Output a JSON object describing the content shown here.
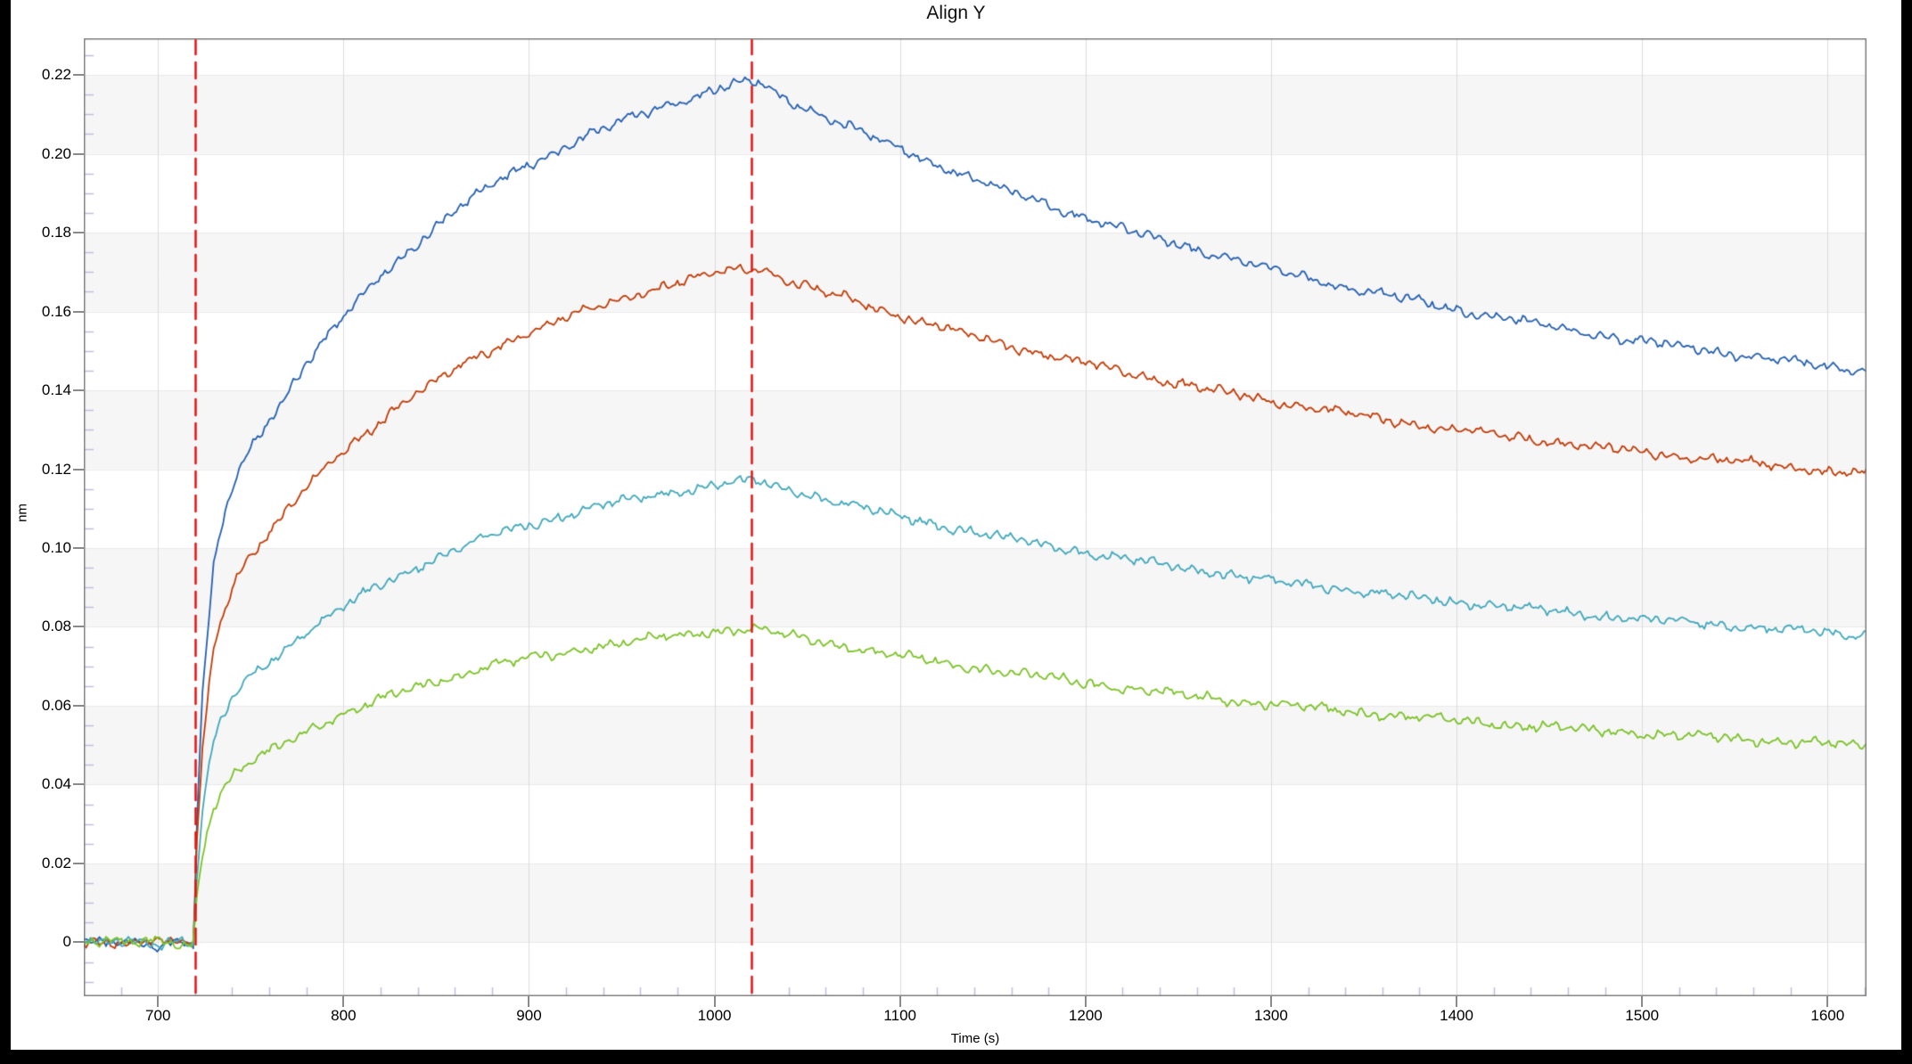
{
  "frame": {
    "background": "#000000",
    "panel_background": "#ffffff",
    "plot_border_color": "#828282",
    "major_tick_color": "#8a8a8a",
    "minor_tick_color": "#c2bede"
  },
  "grid": {
    "v_line_color": "#dcdcdc",
    "h_line_color": "#e9e9e9",
    "band_color": "#f6f6f7",
    "band_intervals": [
      [
        0,
        0.02
      ],
      [
        0.04,
        0.06
      ],
      [
        0.08,
        0.1
      ],
      [
        0.12,
        0.14
      ],
      [
        0.16,
        0.18
      ],
      [
        0.2,
        0.22
      ]
    ]
  },
  "chart_data": {
    "type": "line",
    "title": "Align Y",
    "xlabel": "Time (s)",
    "ylabel": "nm",
    "xlim": [
      660,
      1621
    ],
    "ylim": [
      -0.0137,
      0.2293
    ],
    "grid": "on",
    "legend": "none",
    "x_major_ticks": [
      {
        "v": 700,
        "label": "700"
      },
      {
        "v": 800,
        "label": "800"
      },
      {
        "v": 900,
        "label": "900"
      },
      {
        "v": 1000,
        "label": "1000"
      },
      {
        "v": 1100,
        "label": "1100"
      },
      {
        "v": 1200,
        "label": "1200"
      },
      {
        "v": 1300,
        "label": "1300"
      },
      {
        "v": 1400,
        "label": "1400"
      },
      {
        "v": 1500,
        "label": "1500"
      },
      {
        "v": 1600,
        "label": "1600"
      }
    ],
    "x_minor_step": 20,
    "y_major_ticks": [
      {
        "v": 0,
        "label": "0"
      },
      {
        "v": 0.02,
        "label": "0.02"
      },
      {
        "v": 0.04,
        "label": "0.04"
      },
      {
        "v": 0.06,
        "label": "0.06"
      },
      {
        "v": 0.08,
        "label": "0.08"
      },
      {
        "v": 0.1,
        "label": "0.10"
      },
      {
        "v": 0.12,
        "label": "0.12"
      },
      {
        "v": 0.14,
        "label": "0.14"
      },
      {
        "v": 0.16,
        "label": "0.16"
      },
      {
        "v": 0.18,
        "label": "0.18"
      },
      {
        "v": 0.2,
        "label": "0.20"
      },
      {
        "v": 0.22,
        "label": "0.22"
      }
    ],
    "y_minor_step": 0.005,
    "annotations": {
      "vlines": [
        {
          "x": 720,
          "color": "#e61412",
          "style": "dashed",
          "meaning": "step-marker"
        },
        {
          "x": 1020,
          "color": "#e61412",
          "style": "dashed",
          "meaning": "step-marker"
        }
      ]
    },
    "noise": {
      "hf": 0.00055,
      "w1": 0.0006,
      "w2": 0.0005,
      "w3": 0.0004
    },
    "series": [
      {
        "name": "series-1-blue",
        "color": "#2660ae",
        "baseline": 0.0,
        "peak": 0.218,
        "peak_t": 1020,
        "end": 0.145,
        "points": [
          [
            660,
            0.0005
          ],
          [
            672,
            -0.0006
          ],
          [
            684,
            0.0004
          ],
          [
            696,
            -0.0007
          ],
          [
            708,
            0.0003
          ],
          [
            718,
            -0.0004
          ],
          [
            719,
            -0.0005
          ],
          [
            721,
            0.0315
          ],
          [
            724,
            0.0628
          ],
          [
            730,
            0.0947
          ],
          [
            740,
            0.1149
          ],
          [
            750,
            0.125
          ],
          [
            760,
            0.133
          ],
          [
            780,
            0.1469
          ],
          [
            800,
            0.1587
          ],
          [
            820,
            0.169
          ],
          [
            850,
            0.1817
          ],
          [
            880,
            0.1918
          ],
          [
            900,
            0.1975
          ],
          [
            940,
            0.2064
          ],
          [
            980,
            0.2131
          ],
          [
            1020,
            0.218
          ],
          [
            1040,
            0.2134
          ],
          [
            1060,
            0.2091
          ],
          [
            1100,
            0.201
          ],
          [
            1150,
            0.192
          ],
          [
            1200,
            0.184
          ],
          [
            1250,
            0.177
          ],
          [
            1300,
            0.1708
          ],
          [
            1350,
            0.1653
          ],
          [
            1400,
            0.1605
          ],
          [
            1450,
            0.1563
          ],
          [
            1500,
            0.1525
          ],
          [
            1560,
            0.1486
          ],
          [
            1621,
            0.145
          ]
        ]
      },
      {
        "name": "series-2-red-orange",
        "color": "#c03d08",
        "baseline": 0.0,
        "peak": 0.171,
        "peak_t": 1020,
        "end": 0.119,
        "points": [
          [
            660,
            -0.0004
          ],
          [
            672,
            0.0006
          ],
          [
            684,
            -0.0005
          ],
          [
            696,
            0.0005
          ],
          [
            708,
            -0.0006
          ],
          [
            718,
            0.0004
          ],
          [
            719,
            -0.0003
          ],
          [
            721,
            0.0247
          ],
          [
            724,
            0.0493
          ],
          [
            730,
            0.0743
          ],
          [
            740,
            0.0901
          ],
          [
            750,
            0.0981
          ],
          [
            760,
            0.1044
          ],
          [
            780,
            0.1152
          ],
          [
            800,
            0.1245
          ],
          [
            820,
            0.1326
          ],
          [
            850,
            0.1425
          ],
          [
            880,
            0.1505
          ],
          [
            900,
            0.1549
          ],
          [
            940,
            0.1619
          ],
          [
            980,
            0.1671
          ],
          [
            1020,
            0.171
          ],
          [
            1040,
            0.1677
          ],
          [
            1060,
            0.1646
          ],
          [
            1100,
            0.1589
          ],
          [
            1150,
            0.1524
          ],
          [
            1200,
            0.1468
          ],
          [
            1250,
            0.1418
          ],
          [
            1300,
            0.1373
          ],
          [
            1350,
            0.1334
          ],
          [
            1400,
            0.13
          ],
          [
            1450,
            0.127
          ],
          [
            1500,
            0.1243
          ],
          [
            1560,
            0.1215
          ],
          [
            1621,
            0.1188
          ]
        ]
      },
      {
        "name": "series-3-cyan",
        "color": "#41a8ba",
        "baseline": 0.0,
        "peak": 0.117,
        "peak_t": 1020,
        "end": 0.078,
        "points": [
          [
            660,
            0.0003
          ],
          [
            672,
            -0.0005
          ],
          [
            684,
            0.0006
          ],
          [
            696,
            -0.0004
          ],
          [
            708,
            0.0005
          ],
          [
            718,
            -0.0002
          ],
          [
            719,
            -0.0006
          ],
          [
            721,
            0.0169
          ],
          [
            724,
            0.0337
          ],
          [
            730,
            0.0508
          ],
          [
            740,
            0.0616
          ],
          [
            750,
            0.0671
          ],
          [
            760,
            0.0714
          ],
          [
            780,
            0.0788
          ],
          [
            800,
            0.0852
          ],
          [
            820,
            0.0907
          ],
          [
            850,
            0.0975
          ],
          [
            880,
            0.103
          ],
          [
            900,
            0.106
          ],
          [
            940,
            0.1108
          ],
          [
            980,
            0.1144
          ],
          [
            1020,
            0.117
          ],
          [
            1040,
            0.1146
          ],
          [
            1060,
            0.1122
          ],
          [
            1100,
            0.1079
          ],
          [
            1150,
            0.1031
          ],
          [
            1200,
            0.0989
          ],
          [
            1250,
            0.0951
          ],
          [
            1300,
            0.0918
          ],
          [
            1350,
            0.0889
          ],
          [
            1400,
            0.0863
          ],
          [
            1450,
            0.084
          ],
          [
            1500,
            0.082
          ],
          [
            1560,
            0.0799
          ],
          [
            1621,
            0.078
          ]
        ]
      },
      {
        "name": "series-4-green",
        "color": "#7cc228",
        "baseline": 0.0,
        "peak": 0.0795,
        "peak_t": 1020,
        "end": 0.05,
        "points": [
          [
            660,
            -0.0003
          ],
          [
            672,
            0.0005
          ],
          [
            684,
            -0.0006
          ],
          [
            696,
            0.0004
          ],
          [
            708,
            -0.0004
          ],
          [
            718,
            -0.0003
          ],
          [
            719,
            0.0002
          ],
          [
            721,
            0.0115
          ],
          [
            724,
            0.0229
          ],
          [
            730,
            0.0345
          ],
          [
            740,
            0.0419
          ],
          [
            750,
            0.0456
          ],
          [
            760,
            0.0485
          ],
          [
            780,
            0.0536
          ],
          [
            800,
            0.0579
          ],
          [
            820,
            0.0616
          ],
          [
            850,
            0.0662
          ],
          [
            880,
            0.07
          ],
          [
            900,
            0.072
          ],
          [
            940,
            0.0753
          ],
          [
            980,
            0.0777
          ],
          [
            1020,
            0.0795
          ],
          [
            1040,
            0.0777
          ],
          [
            1060,
            0.0759
          ],
          [
            1100,
            0.0726
          ],
          [
            1150,
            0.069
          ],
          [
            1200,
            0.0658
          ],
          [
            1250,
            0.0629
          ],
          [
            1300,
            0.0604
          ],
          [
            1350,
            0.0582
          ],
          [
            1400,
            0.0562
          ],
          [
            1450,
            0.0545
          ],
          [
            1500,
            0.053
          ],
          [
            1560,
            0.0514
          ],
          [
            1621,
            0.05
          ]
        ]
      }
    ]
  }
}
